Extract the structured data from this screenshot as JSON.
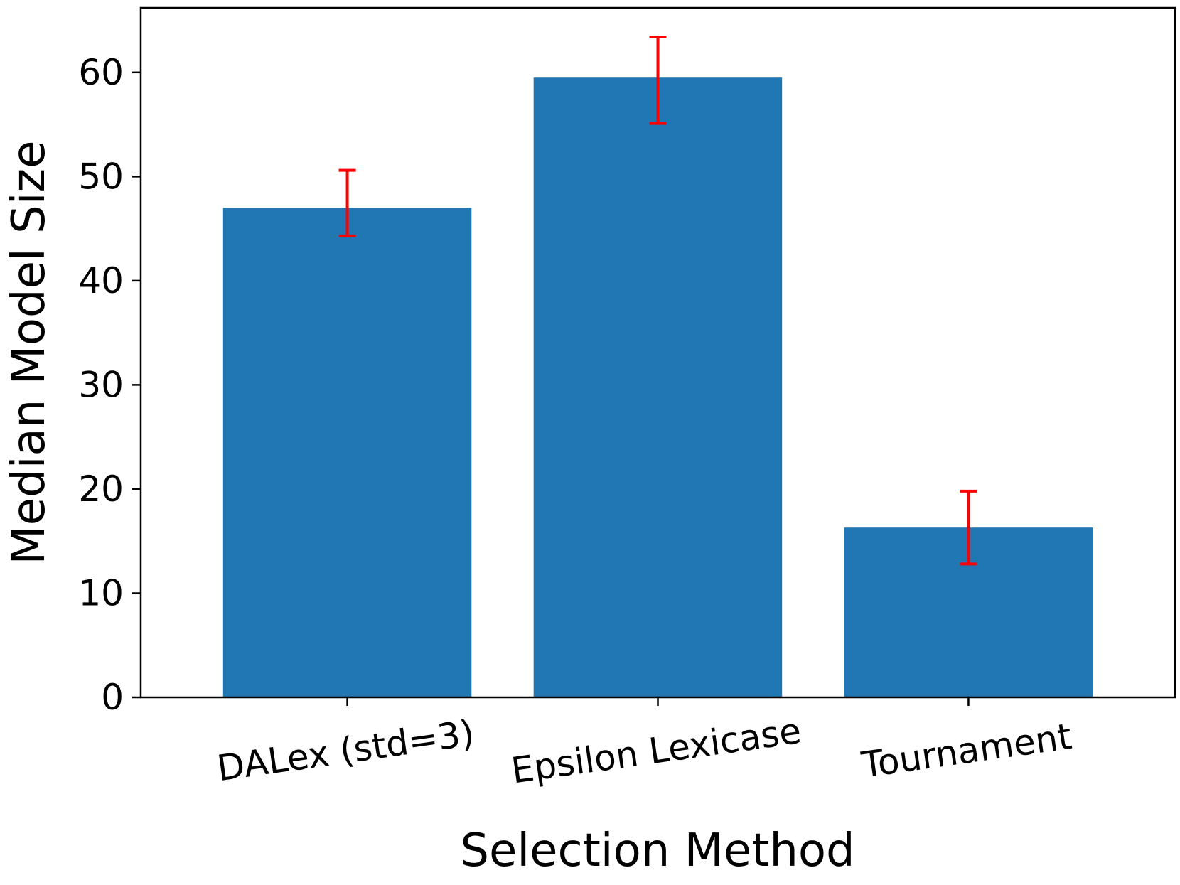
{
  "chart_data": {
    "type": "bar",
    "categories": [
      "DALex (std=3)",
      "Epsilon Lexicase",
      "Tournament"
    ],
    "values": [
      47.0,
      59.5,
      16.3
    ],
    "error_bars": [
      {
        "low": 44.3,
        "high": 50.6
      },
      {
        "low": 55.1,
        "high": 63.4
      },
      {
        "low": 12.8,
        "high": 19.8
      }
    ],
    "xlabel": "Selection Method",
    "ylabel": "Median Model Size",
    "ylim": [
      0,
      66.2
    ],
    "yticks": [
      0,
      10,
      20,
      30,
      40,
      50,
      60
    ],
    "ytick_labels": [
      "0",
      "10",
      "20",
      "30",
      "40",
      "50",
      "60"
    ],
    "grid": false,
    "legend": "none",
    "colors": {
      "bar": "#2077b4",
      "error_bar": "#ff0000",
      "axis": "#000000"
    }
  }
}
